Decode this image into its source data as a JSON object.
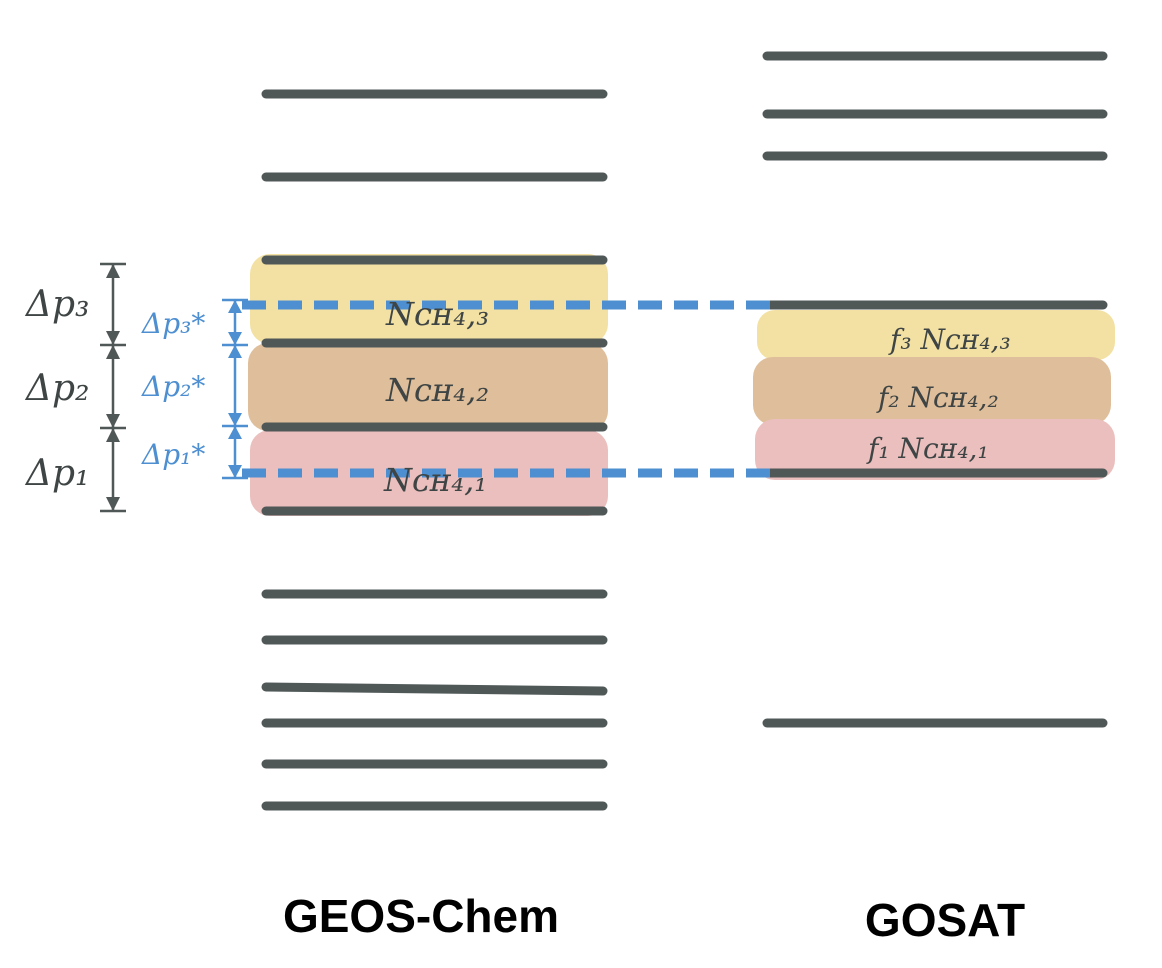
{
  "labels": {
    "left_model": "GEOS-Chem",
    "right_model": "GOSAT"
  },
  "layers_left": {
    "n1": "Nᴄʜ₄,₁",
    "n2": "Nᴄʜ₄,₂",
    "n3": "Nᴄʜ₄,₃"
  },
  "layers_right": {
    "f1": "f₁ Nᴄʜ₄,₁",
    "f2": "f₂ Nᴄʜ₄,₂",
    "f3": "f₃ Nᴄʜ₄,₃"
  },
  "dims_dark": {
    "dp1": "Δp₁",
    "dp2": "Δp₂",
    "dp3": "Δp₃"
  },
  "dims_blue": {
    "dp1s": "Δp₁*",
    "dp2s": "Δp₂*",
    "dp3s": "Δp₃*"
  },
  "colors": {
    "level_line": "#4f5757",
    "dashed_line": "#4d8fd1",
    "layer1_fill": "#eabfbd",
    "layer2_fill": "#dfbf9b",
    "layer3_fill": "#f3e1a3"
  }
}
